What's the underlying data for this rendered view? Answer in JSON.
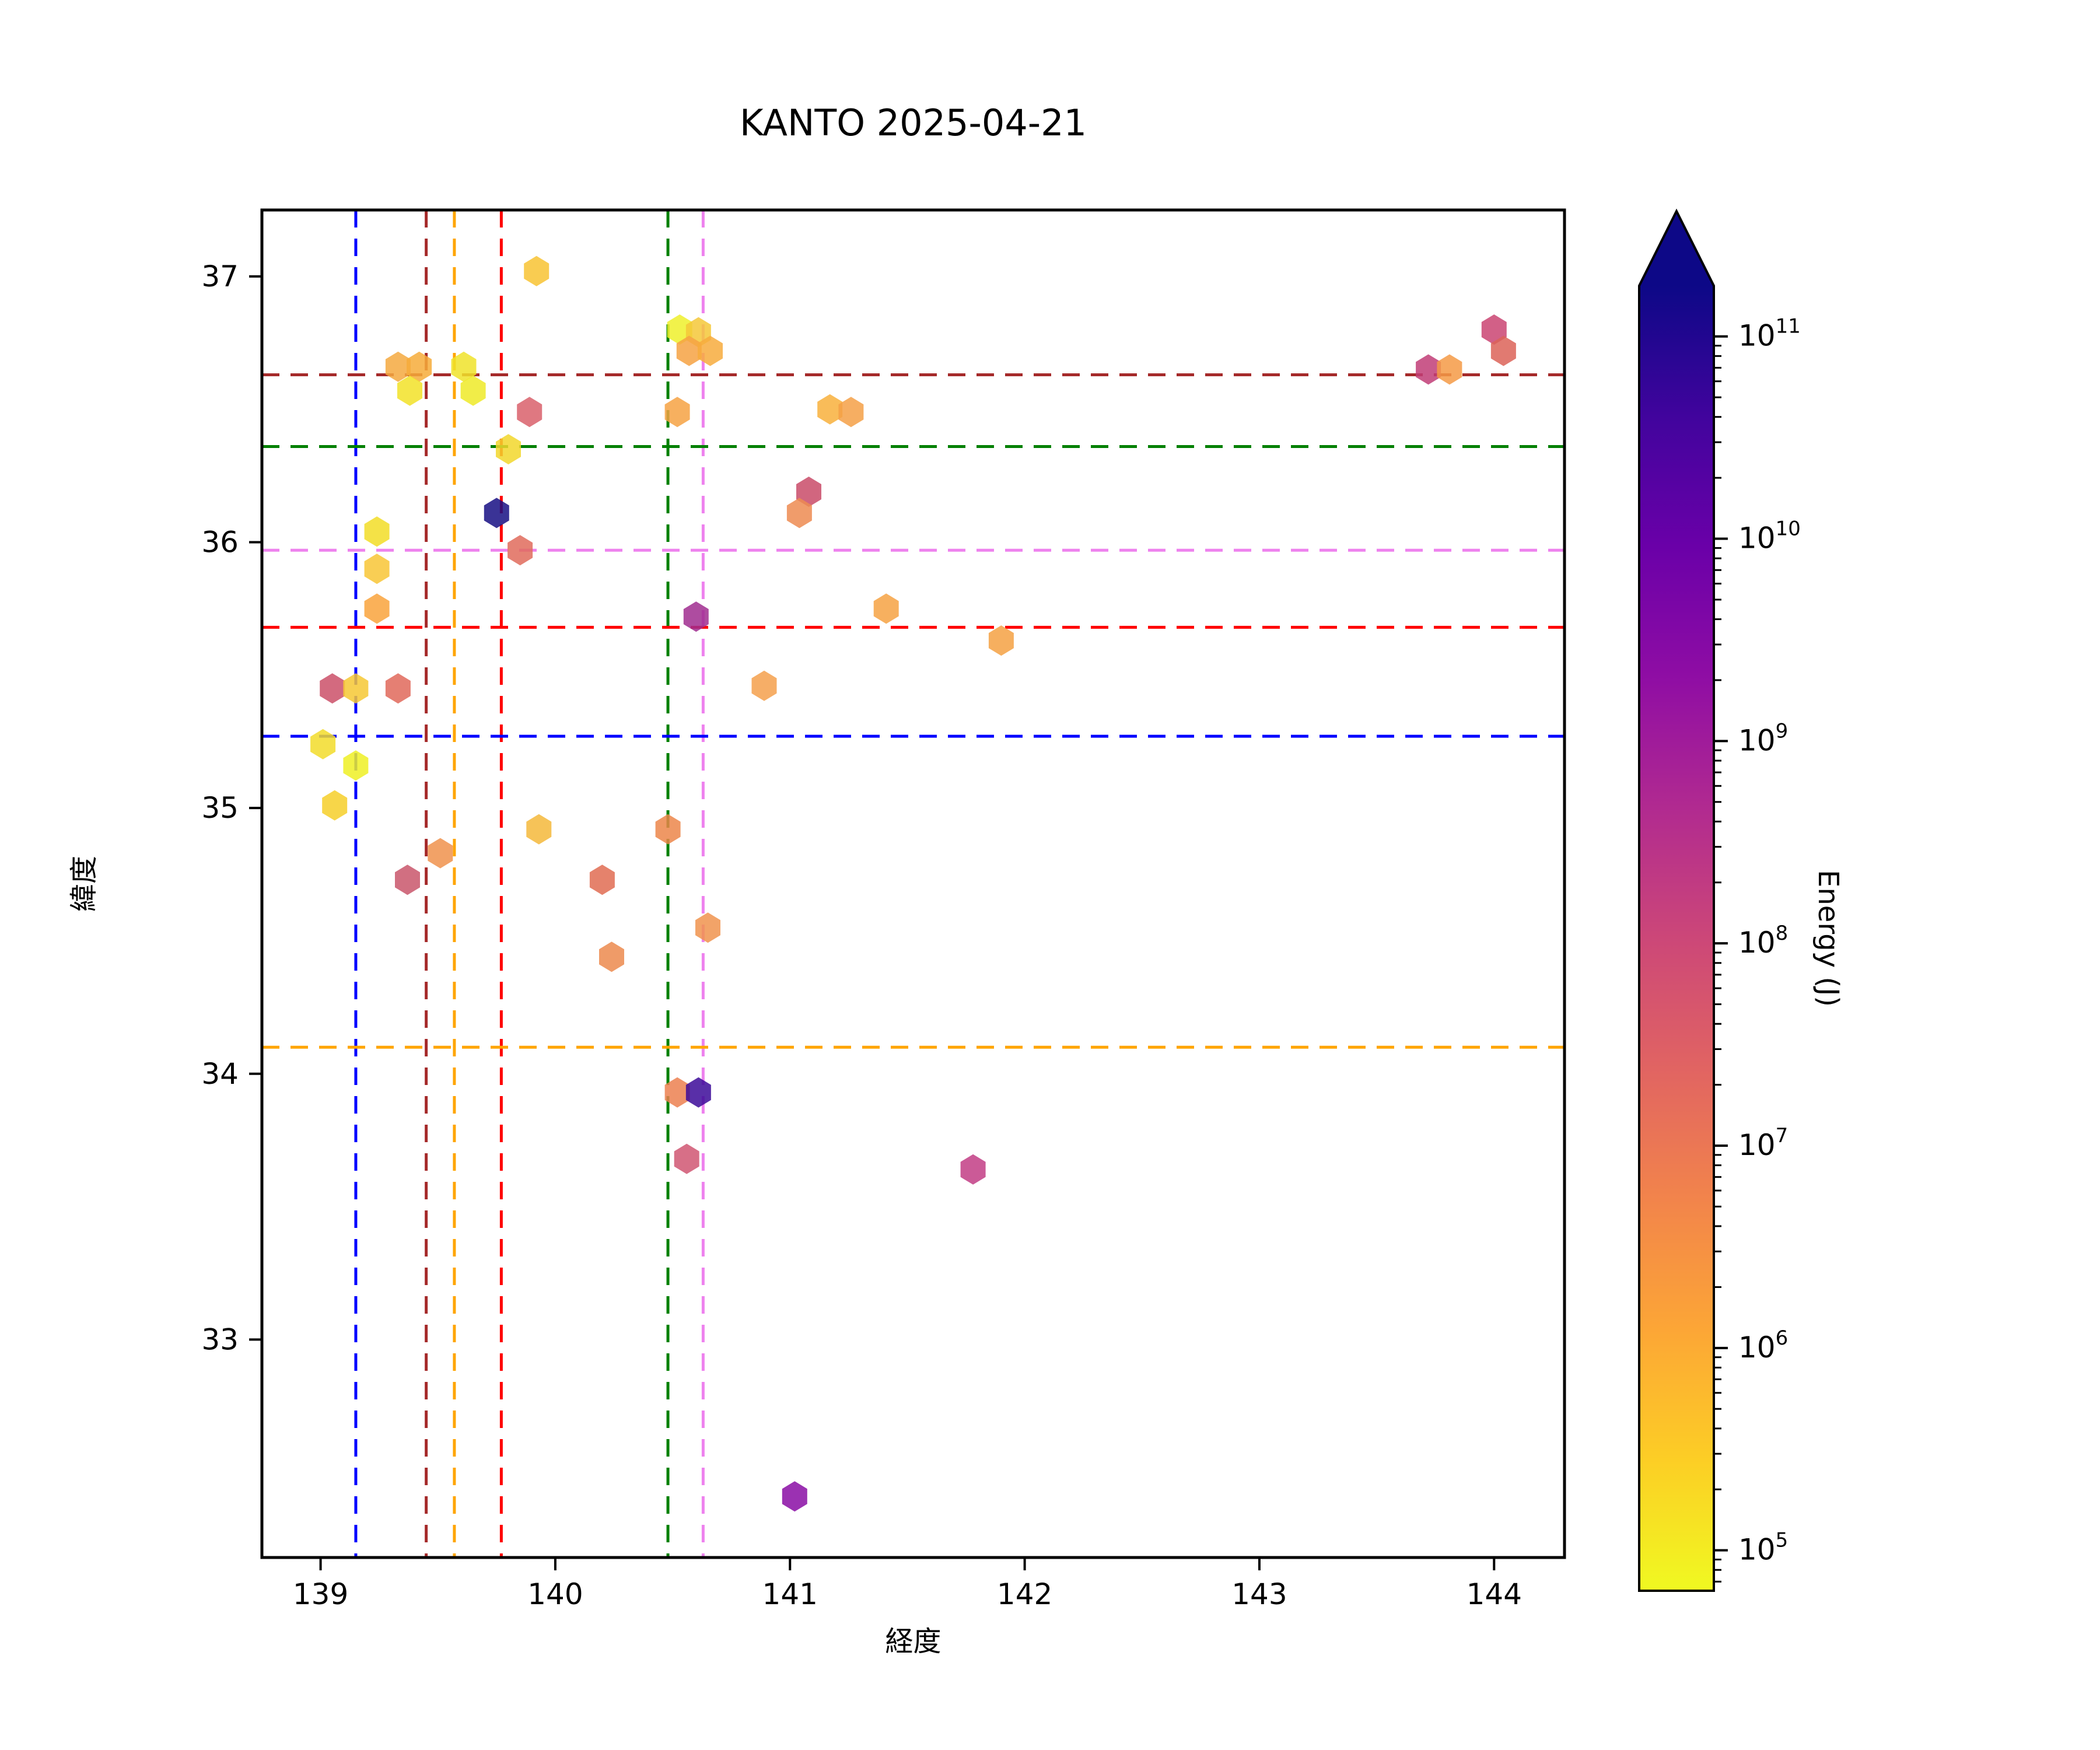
{
  "chart": {
    "title": "KANTO 2025-04-21",
    "xlabel": "経度",
    "ylabel": "緯度",
    "colorbar_label": "Energy (J)"
  },
  "chart_data": {
    "type": "scatter",
    "marker": "hexagon",
    "title": "KANTO 2025-04-21",
    "xlabel": "経度",
    "ylabel": "緯度",
    "xlim": [
      138.75,
      144.3
    ],
    "ylim": [
      32.18,
      37.25
    ],
    "xticks": [
      139,
      140,
      141,
      142,
      143,
      144
    ],
    "yticks": [
      33,
      34,
      35,
      36,
      37
    ],
    "grid": false,
    "colorbar": {
      "label": "Energy (J)",
      "scale": "log",
      "log_min": 4.8,
      "log_max": 11.25,
      "extend": "max",
      "tick_exponents": [
        11,
        10,
        9,
        8,
        7,
        6,
        5
      ],
      "colormap": "plasma_r",
      "colormap_stops_top_to_bottom": [
        "#0d0887",
        "#41049d",
        "#6a00a8",
        "#8f0da4",
        "#b12a90",
        "#cc4778",
        "#e16462",
        "#f2844b",
        "#fca636",
        "#fcce25",
        "#f0f921"
      ],
      "arrow_color": "#0d0887"
    },
    "reference_lines": {
      "vertical": [
        {
          "lon": 139.15,
          "color": "#0000ff"
        },
        {
          "lon": 139.45,
          "color": "#a52a2a"
        },
        {
          "lon": 139.57,
          "color": "#ffa500"
        },
        {
          "lon": 139.77,
          "color": "#ff0000"
        },
        {
          "lon": 140.48,
          "color": "#008000"
        },
        {
          "lon": 140.63,
          "color": "#ee82ee"
        }
      ],
      "horizontal": [
        {
          "lat": 36.63,
          "color": "#a52a2a"
        },
        {
          "lat": 36.36,
          "color": "#008000"
        },
        {
          "lat": 35.97,
          "color": "#ee82ee"
        },
        {
          "lat": 35.68,
          "color": "#ff0000"
        },
        {
          "lat": 35.27,
          "color": "#0000ff"
        },
        {
          "lat": 34.1,
          "color": "#ffa500"
        }
      ]
    },
    "points": [
      {
        "lon": 139.92,
        "lat": 37.02,
        "energy_j": 400000.0,
        "color": "#f8c332"
      },
      {
        "lon": 140.53,
        "lat": 36.8,
        "energy_j": 100000.0,
        "color": "#eff02b"
      },
      {
        "lon": 140.61,
        "lat": 36.79,
        "energy_j": 350000.0,
        "color": "#f5c838"
      },
      {
        "lon": 140.57,
        "lat": 36.72,
        "energy_j": 1500000.0,
        "color": "#f6a243"
      },
      {
        "lon": 140.66,
        "lat": 36.72,
        "energy_j": 1000000.0,
        "color": "#f7ac3d"
      },
      {
        "lon": 139.33,
        "lat": 36.66,
        "energy_j": 1200000.0,
        "color": "#f4a940"
      },
      {
        "lon": 139.42,
        "lat": 36.66,
        "energy_j": 1100000.0,
        "color": "#f6ab3a"
      },
      {
        "lon": 139.61,
        "lat": 36.66,
        "energy_j": 130000.0,
        "color": "#f0e32a"
      },
      {
        "lon": 139.38,
        "lat": 36.57,
        "energy_j": 130000.0,
        "color": "#f2e228"
      },
      {
        "lon": 139.65,
        "lat": 36.57,
        "energy_j": 100000.0,
        "color": "#efea28"
      },
      {
        "lon": 139.89,
        "lat": 36.49,
        "energy_j": 25000000.0,
        "color": "#d9606b"
      },
      {
        "lon": 140.52,
        "lat": 36.49,
        "energy_j": 1500000.0,
        "color": "#f6a243"
      },
      {
        "lon": 141.17,
        "lat": 36.5,
        "energy_j": 800000.0,
        "color": "#f8b03c"
      },
      {
        "lon": 141.26,
        "lat": 36.49,
        "energy_j": 1600000.0,
        "color": "#f5a046"
      },
      {
        "lon": 139.8,
        "lat": 36.35,
        "energy_j": 200000.0,
        "color": "#f2d72b"
      },
      {
        "lon": 141.08,
        "lat": 36.19,
        "energy_j": 110000000.0,
        "color": "#c94b69"
      },
      {
        "lon": 141.04,
        "lat": 36.11,
        "energy_j": 3500000.0,
        "color": "#ed8b51"
      },
      {
        "lon": 139.75,
        "lat": 36.11,
        "energy_j": 120000000000.0,
        "color": "#180f84"
      },
      {
        "lon": 139.24,
        "lat": 36.04,
        "energy_j": 180000.0,
        "color": "#f2dd27"
      },
      {
        "lon": 139.85,
        "lat": 35.97,
        "energy_j": 15000000.0,
        "color": "#e06b5c"
      },
      {
        "lon": 139.24,
        "lat": 35.9,
        "energy_j": 360000.0,
        "color": "#f8c636"
      },
      {
        "lon": 139.24,
        "lat": 35.75,
        "energy_j": 1300000.0,
        "color": "#f9a33c"
      },
      {
        "lon": 140.6,
        "lat": 35.72,
        "energy_j": 600000000.0,
        "color": "#a02d8f"
      },
      {
        "lon": 141.41,
        "lat": 35.75,
        "energy_j": 1500000.0,
        "color": "#f6a243"
      },
      {
        "lon": 141.9,
        "lat": 35.63,
        "energy_j": 1500000.0,
        "color": "#f5a143"
      },
      {
        "lon": 139.05,
        "lat": 35.45,
        "energy_j": 90000000.0,
        "color": "#cb5069"
      },
      {
        "lon": 139.15,
        "lat": 35.45,
        "energy_j": 350000.0,
        "color": "#f6c834"
      },
      {
        "lon": 139.33,
        "lat": 35.45,
        "energy_j": 17000000.0,
        "color": "#e0695a"
      },
      {
        "lon": 140.89,
        "lat": 35.46,
        "energy_j": 1500000.0,
        "color": "#f5a04c"
      },
      {
        "lon": 139.01,
        "lat": 35.24,
        "energy_j": 170000.0,
        "color": "#f2dc2a"
      },
      {
        "lon": 139.15,
        "lat": 35.16,
        "energy_j": 100000.0,
        "color": "#eff024"
      },
      {
        "lon": 139.06,
        "lat": 35.01,
        "energy_j": 300000.0,
        "color": "#f6cf29"
      },
      {
        "lon": 139.93,
        "lat": 34.92,
        "energy_j": 500000.0,
        "color": "#f5b93b"
      },
      {
        "lon": 140.48,
        "lat": 34.92,
        "energy_j": 4000000.0,
        "color": "#ec864a"
      },
      {
        "lon": 139.51,
        "lat": 34.83,
        "energy_j": 2600000.0,
        "color": "#f0924c"
      },
      {
        "lon": 139.37,
        "lat": 34.73,
        "energy_j": 80000000.0,
        "color": "#c9566b"
      },
      {
        "lon": 140.2,
        "lat": 34.73,
        "energy_j": 18000000.0,
        "color": "#e06c52"
      },
      {
        "lon": 140.65,
        "lat": 34.55,
        "energy_j": 2500000.0,
        "color": "#f0934e"
      },
      {
        "lon": 140.24,
        "lat": 34.44,
        "energy_j": 3800000.0,
        "color": "#ec8a4d"
      },
      {
        "lon": 140.52,
        "lat": 33.93,
        "energy_j": 5000000.0,
        "color": "#ec8050"
      },
      {
        "lon": 140.61,
        "lat": 33.93,
        "energy_j": 50000000000.0,
        "color": "#3c0a99"
      },
      {
        "lon": 140.56,
        "lat": 33.68,
        "energy_j": 60000000.0,
        "color": "#d05672"
      },
      {
        "lon": 141.78,
        "lat": 33.64,
        "energy_j": 250000000.0,
        "color": "#c23d85"
      },
      {
        "lon": 141.02,
        "lat": 32.41,
        "energy_j": 2000000000.0,
        "color": "#8a0da5"
      },
      {
        "lon": 143.72,
        "lat": 36.65,
        "energy_j": 150000000.0,
        "color": "#c13d77"
      },
      {
        "lon": 143.81,
        "lat": 36.65,
        "energy_j": 1800000.0,
        "color": "#f49a45"
      },
      {
        "lon": 144.0,
        "lat": 36.8,
        "energy_j": 120000000.0,
        "color": "#ca4472"
      },
      {
        "lon": 144.04,
        "lat": 36.72,
        "energy_j": 20000000.0,
        "color": "#dc6358"
      }
    ]
  }
}
